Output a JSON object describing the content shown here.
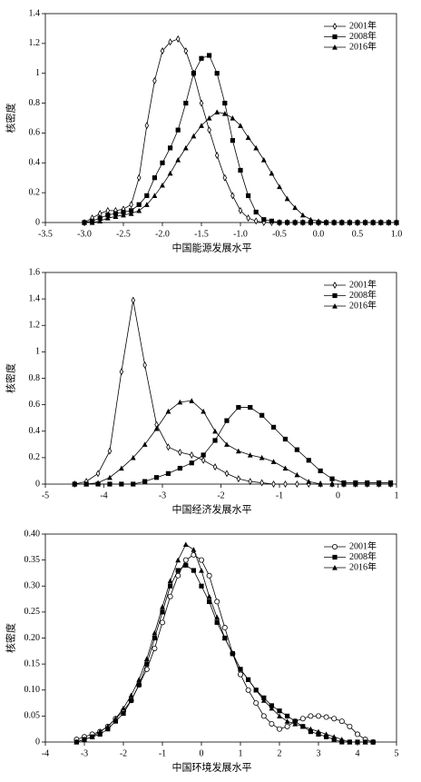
{
  "chart_data": [
    {
      "type": "line",
      "x_label": "中国能源发展水平",
      "y_label": "核密度",
      "legend": "top-right",
      "xlim": [
        -3.5,
        1.0
      ],
      "ylim": [
        0,
        1.4
      ],
      "xticks": [
        -3.5,
        {
          "value": -3.0,
          "label": "-3.0"
        },
        -2.5,
        {
          "value": -2.0,
          "label": "-2.0"
        },
        -1.5,
        {
          "value": -1.0,
          "label": "-1.0"
        },
        -0.5,
        {
          "value": 0,
          "label": "0.0"
        },
        0.5,
        {
          "value": 1.0,
          "label": "1.0"
        }
      ],
      "yticks": [
        0,
        0.2,
        0.4,
        0.6,
        0.8,
        1.0,
        1.2,
        1.4
      ],
      "x": [
        -3.0,
        -2.9,
        -2.8,
        -2.7,
        -2.6,
        -2.5,
        -2.4,
        -2.3,
        -2.2,
        -2.1,
        -2.0,
        -1.9,
        -1.8,
        -1.7,
        -1.6,
        -1.5,
        -1.4,
        -1.3,
        -1.2,
        -1.1,
        -1.0,
        -0.9,
        -0.8,
        -0.7,
        -0.6,
        -0.5,
        -0.4,
        -0.3,
        -0.2,
        -0.1,
        0.0,
        0.1,
        0.2,
        0.3,
        0.4,
        0.5,
        0.6,
        0.7,
        0.8,
        0.9,
        1.0
      ],
      "series": [
        {
          "name": "2001年",
          "color": "#000000",
          "marker": "diamond",
          "values": [
            0,
            0.03,
            0.06,
            0.08,
            0.08,
            0.09,
            0.12,
            0.3,
            0.65,
            0.95,
            1.15,
            1.21,
            1.23,
            1.15,
            1.0,
            0.8,
            0.62,
            0.45,
            0.3,
            0.18,
            0.08,
            0.03,
            0.01,
            0,
            0,
            0,
            0,
            0,
            0,
            0,
            0,
            0,
            0,
            0,
            0,
            0,
            0,
            0,
            0,
            0,
            0
          ]
        },
        {
          "name": "2008年",
          "color": "#000000",
          "marker": "square",
          "values": [
            0,
            0.01,
            0.03,
            0.05,
            0.06,
            0.07,
            0.08,
            0.12,
            0.18,
            0.3,
            0.4,
            0.5,
            0.62,
            0.8,
            1.0,
            1.1,
            1.12,
            1.0,
            0.8,
            0.55,
            0.35,
            0.18,
            0.07,
            0.02,
            0.01,
            0,
            0,
            0,
            0,
            0,
            0,
            0,
            0,
            0,
            0,
            0,
            0,
            0,
            0,
            0,
            0
          ]
        },
        {
          "name": "2016年",
          "color": "#000000",
          "marker": "triangle",
          "values": [
            0,
            0,
            0.01,
            0.03,
            0.04,
            0.05,
            0.06,
            0.08,
            0.12,
            0.18,
            0.25,
            0.33,
            0.42,
            0.5,
            0.58,
            0.65,
            0.7,
            0.74,
            0.73,
            0.7,
            0.65,
            0.57,
            0.5,
            0.42,
            0.33,
            0.24,
            0.16,
            0.1,
            0.05,
            0.02,
            0.01,
            0,
            0,
            0,
            0,
            0,
            0,
            0,
            0,
            0,
            0
          ]
        }
      ]
    },
    {
      "type": "line",
      "x_label": "中国经济发展水平",
      "y_label": "核密度",
      "legend": "top-right",
      "xlim": [
        -5,
        1
      ],
      "ylim": [
        0,
        1.6
      ],
      "xticks": [
        -5,
        -4,
        -3,
        -2,
        -1,
        0,
        1
      ],
      "yticks": [
        0,
        0.2,
        0.4,
        0.6,
        0.8,
        1.0,
        1.2,
        1.4,
        1.6
      ],
      "x": [
        -4.5,
        -4.3,
        -4.1,
        -3.9,
        -3.7,
        -3.5,
        -3.3,
        -3.1,
        -2.9,
        -2.7,
        -2.5,
        -2.3,
        -2.1,
        -1.9,
        -1.7,
        -1.5,
        -1.3,
        -1.1,
        -0.9,
        -0.7,
        -0.5,
        -0.3,
        -0.1,
        0.1,
        0.3,
        0.5,
        0.7,
        0.9
      ],
      "series": [
        {
          "name": "2001年",
          "color": "#000000",
          "marker": "diamond",
          "values": [
            0,
            0.02,
            0.08,
            0.25,
            0.85,
            1.39,
            0.9,
            0.45,
            0.28,
            0.24,
            0.22,
            0.18,
            0.13,
            0.08,
            0.04,
            0.02,
            0.01,
            0,
            0,
            0,
            0,
            0,
            0,
            0,
            0,
            0,
            0,
            0
          ]
        },
        {
          "name": "2008年",
          "color": "#000000",
          "marker": "square",
          "values": [
            0,
            0,
            0,
            0,
            0,
            0,
            0.02,
            0.05,
            0.08,
            0.12,
            0.16,
            0.22,
            0.33,
            0.48,
            0.58,
            0.58,
            0.52,
            0.43,
            0.34,
            0.26,
            0.18,
            0.1,
            0.04,
            0.01,
            0.01,
            0.01,
            0.01,
            0.01
          ]
        },
        {
          "name": "2016年",
          "color": "#000000",
          "marker": "triangle",
          "values": [
            0,
            0,
            0.01,
            0.05,
            0.12,
            0.2,
            0.3,
            0.42,
            0.55,
            0.62,
            0.63,
            0.55,
            0.4,
            0.3,
            0.25,
            0.22,
            0.2,
            0.17,
            0.12,
            0.07,
            0.02,
            0,
            0,
            0,
            0,
            0,
            0,
            0
          ]
        }
      ]
    },
    {
      "type": "line",
      "x_label": "中国环境发展水平",
      "y_label": "核密度",
      "legend": "top-right",
      "xlim": [
        -4,
        5
      ],
      "ylim": [
        0,
        0.4
      ],
      "xticks": [
        -4,
        -3,
        -2,
        -1,
        0,
        1,
        2,
        3,
        4,
        5
      ],
      "yticks": [
        0,
        0.05,
        {
          "value": 0.1,
          "label": "0.10"
        },
        0.15,
        {
          "value": 0.2,
          "label": "0.20"
        },
        0.25,
        {
          "value": 0.3,
          "label": "0.30"
        },
        0.35,
        {
          "value": 0.4,
          "label": "0.40"
        }
      ],
      "x": [
        -3.2,
        -3.0,
        -2.8,
        -2.6,
        -2.4,
        -2.2,
        -2.0,
        -1.8,
        -1.6,
        -1.4,
        -1.2,
        -1.0,
        -0.8,
        -0.6,
        -0.4,
        -0.2,
        0.0,
        0.2,
        0.4,
        0.6,
        0.8,
        1.0,
        1.2,
        1.4,
        1.6,
        1.8,
        2.0,
        2.2,
        2.4,
        2.6,
        2.8,
        3.0,
        3.2,
        3.4,
        3.6,
        3.8,
        4.0,
        4.2,
        4.4
      ],
      "series": [
        {
          "name": "2001年",
          "color": "#000000",
          "marker": "circle",
          "values": [
            0.005,
            0.01,
            0.015,
            0.02,
            0.03,
            0.045,
            0.06,
            0.08,
            0.11,
            0.14,
            0.18,
            0.23,
            0.28,
            0.32,
            0.35,
            0.36,
            0.35,
            0.32,
            0.27,
            0.22,
            0.17,
            0.13,
            0.1,
            0.075,
            0.05,
            0.035,
            0.025,
            0.03,
            0.04,
            0.045,
            0.05,
            0.05,
            0.048,
            0.045,
            0.04,
            0.03,
            0.015,
            0.005,
            0
          ]
        },
        {
          "name": "2008年",
          "color": "#000000",
          "marker": "square",
          "values": [
            0,
            0.005,
            0.01,
            0.015,
            0.025,
            0.04,
            0.055,
            0.08,
            0.11,
            0.15,
            0.2,
            0.25,
            0.3,
            0.33,
            0.34,
            0.33,
            0.3,
            0.27,
            0.23,
            0.2,
            0.17,
            0.14,
            0.12,
            0.1,
            0.085,
            0.07,
            0.06,
            0.05,
            0.04,
            0.03,
            0.02,
            0.015,
            0.01,
            0.005,
            0,
            0,
            0,
            0,
            0
          ]
        },
        {
          "name": "2016年",
          "color": "#000000",
          "marker": "triangle",
          "values": [
            0,
            0.005,
            0.01,
            0.02,
            0.03,
            0.045,
            0.065,
            0.09,
            0.12,
            0.16,
            0.21,
            0.26,
            0.31,
            0.35,
            0.38,
            0.37,
            0.33,
            0.28,
            0.24,
            0.2,
            0.17,
            0.14,
            0.12,
            0.1,
            0.08,
            0.065,
            0.05,
            0.04,
            0.035,
            0.03,
            0.025,
            0.02,
            0.015,
            0.01,
            0.005,
            0,
            0,
            0,
            0
          ]
        }
      ]
    }
  ]
}
